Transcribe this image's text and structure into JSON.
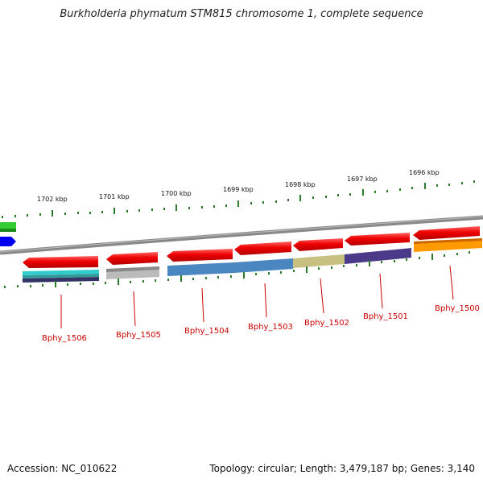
{
  "title": "Burkholderia phymatum STM815 chromosome 1, complete sequence",
  "footer": {
    "accession": "Accession: NC_010622",
    "summary": "Topology: circular; Length: 3,479,187 bp; Genes: 3,140"
  },
  "scale_labels": [
    "1702 kbp",
    "1701 kbp",
    "1700 kbp",
    "1699 kbp",
    "1698 kbp",
    "1697 kbp",
    "1696 kbp"
  ],
  "genes": [
    {
      "label": "Bphy_1506",
      "name_color": "#cc0000"
    },
    {
      "label": "Bphy_1505",
      "name_color": "#cc0000"
    },
    {
      "label": "Bphy_1504",
      "name_color": "#cc0000"
    },
    {
      "label": "Bphy_1503",
      "name_color": "#cc0000"
    },
    {
      "label": "Bphy_1502",
      "name_color": "#cc0000"
    },
    {
      "label": "Bphy_1501",
      "name_color": "#cc0000"
    },
    {
      "label": "Bphy_1500",
      "name_color": "#cc0000"
    }
  ],
  "colors": {
    "cds": "#ee0000",
    "backbone": "#888888",
    "ticks": "#2a7a2a",
    "label": "#cc0000"
  }
}
